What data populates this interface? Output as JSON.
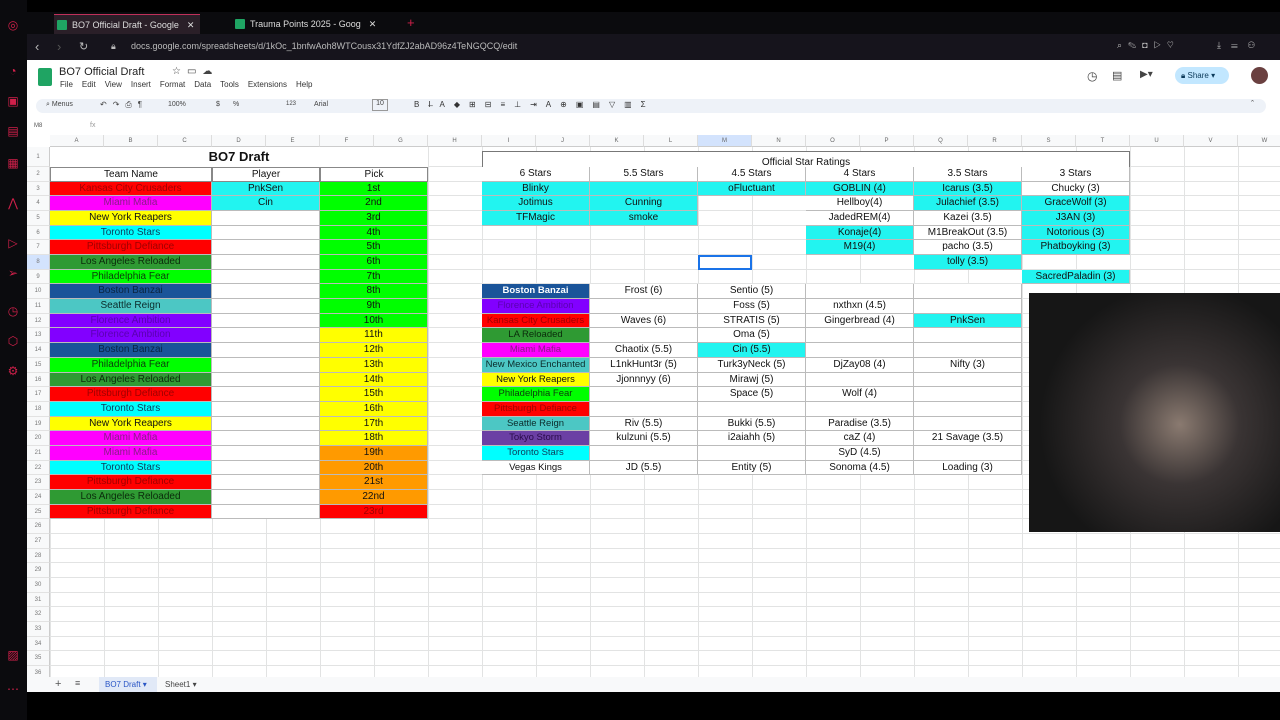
{
  "browser": {
    "tabs": [
      {
        "title": "BO7 Official Draft - Google"
      },
      {
        "title": "Trauma Points 2025 - Goog"
      }
    ],
    "url": "docs.google.com/spreadsheets/d/1kOc_1bnfwAoh8WTCousx31YdfZJ2abAD96z4TeNGQCQ/edit"
  },
  "doc": {
    "title": "BO7 Official Draft",
    "menus": [
      "File",
      "Edit",
      "View",
      "Insert",
      "Format",
      "Data",
      "Tools",
      "Extensions",
      "Help"
    ],
    "share_label": "Share",
    "toolbar": {
      "search": "Menus",
      "zoom": "100%",
      "currency": "$",
      "percent": "%",
      "number_format": "123",
      "font": "Arial",
      "font_size": "10"
    },
    "name_box": "M8",
    "fx": "fx"
  },
  "columns": [
    "A",
    "B",
    "C",
    "D",
    "E",
    "F",
    "G",
    "H",
    "I",
    "J",
    "K",
    "L",
    "M",
    "N",
    "O",
    "P",
    "Q",
    "R",
    "S",
    "T",
    "U",
    "V",
    "W"
  ],
  "colors": {
    "red": "#ff0000",
    "magenta": "#ff00ff",
    "yellow": "#ffff00",
    "cyan": "#00ffff",
    "la": "#2f9a33",
    "green": "#00ff00",
    "boston": "#1a5499",
    "seattle": "#4cc7c4",
    "purple": "#8200ff",
    "tokyo": "#6b3fa4",
    "orange": "#ff9a00",
    "white": "#ffffff",
    "cyanlight": "#22f4f0"
  },
  "draft": {
    "title": "BO7 Draft",
    "headers": {
      "team": "Team Name",
      "player": "Player",
      "pick": "Pick"
    },
    "rows": [
      {
        "team": "Kansas City Crusaders",
        "tc": "red",
        "player": "PnkSen",
        "pick": "1st",
        "pc": "green"
      },
      {
        "team": "Miami Mafia",
        "tc": "magenta",
        "player": "Cin",
        "pick": "2nd",
        "pc": "green"
      },
      {
        "team": "New York Reapers",
        "tc": "yellow",
        "player": "",
        "pick": "3rd",
        "pc": "green"
      },
      {
        "team": "Toronto Stars",
        "tc": "cyan",
        "player": "",
        "pick": "4th",
        "pc": "green"
      },
      {
        "team": "Pittsburgh Defiance",
        "tc": "red",
        "player": "",
        "pick": "5th",
        "pc": "green"
      },
      {
        "team": "Los Angeles Reloaded",
        "tc": "la",
        "player": "",
        "pick": "6th",
        "pc": "green"
      },
      {
        "team": "Philadelphia Fear",
        "tc": "green",
        "player": "",
        "pick": "7th",
        "pc": "green"
      },
      {
        "team": "Boston Banzai",
        "tc": "boston",
        "player": "",
        "pick": "8th",
        "pc": "green"
      },
      {
        "team": "Seattle Reign",
        "tc": "seattle",
        "player": "",
        "pick": "9th",
        "pc": "green"
      },
      {
        "team": "Florence Ambition",
        "tc": "purple",
        "player": "",
        "pick": "10th",
        "pc": "green"
      },
      {
        "team": "Florence Ambition",
        "tc": "purple",
        "player": "",
        "pick": "11th",
        "pc": "yellow"
      },
      {
        "team": "Boston Banzai",
        "tc": "boston",
        "player": "",
        "pick": "12th",
        "pc": "yellow"
      },
      {
        "team": "Philadelphia Fear",
        "tc": "green",
        "player": "",
        "pick": "13th",
        "pc": "yellow"
      },
      {
        "team": "Los Angeles Reloaded",
        "tc": "la",
        "player": "",
        "pick": "14th",
        "pc": "yellow"
      },
      {
        "team": "Pittsburgh Defiance",
        "tc": "red",
        "player": "",
        "pick": "15th",
        "pc": "yellow"
      },
      {
        "team": "Toronto Stars",
        "tc": "cyan",
        "player": "",
        "pick": "16th",
        "pc": "yellow"
      },
      {
        "team": "New York Reapers",
        "tc": "yellow",
        "player": "",
        "pick": "17th",
        "pc": "yellow"
      },
      {
        "team": "Miami Mafia",
        "tc": "magenta",
        "player": "",
        "pick": "18th",
        "pc": "yellow"
      },
      {
        "team": "Miami Mafia",
        "tc": "magenta",
        "player": "",
        "pick": "19th",
        "pc": "orange"
      },
      {
        "team": "Toronto Stars",
        "tc": "cyan",
        "player": "",
        "pick": "20th",
        "pc": "orange"
      },
      {
        "team": "Pittsburgh Defiance",
        "tc": "red",
        "player": "",
        "pick": "21st",
        "pc": "orange"
      },
      {
        "team": "Los Angeles Reloaded",
        "tc": "la",
        "player": "",
        "pick": "22nd",
        "pc": "orange"
      },
      {
        "team": "Pittsburgh Defiance",
        "tc": "red",
        "player": "",
        "pick": "23rd",
        "pc": "red"
      }
    ]
  },
  "ratings": {
    "title": "Official Star Ratings",
    "tiers": [
      {
        "label": "6 Stars",
        "players": [
          {
            "n": "Blinky",
            "hl": true
          },
          {
            "n": "Jotimus",
            "hl": true
          },
          {
            "n": "TFMagic",
            "hl": true
          }
        ]
      },
      {
        "label": "5.5 Stars",
        "players": [
          {
            "n": "",
            "hl": true
          },
          {
            "n": "Cunning",
            "hl": true
          },
          {
            "n": "smoke",
            "hl": true
          }
        ]
      },
      {
        "label": "4.5 Stars",
        "players": [
          {
            "n": "oFluctuant",
            "hl": true
          }
        ]
      },
      {
        "label": "4 Stars",
        "players": [
          {
            "n": "GOBLIN (4)",
            "hl": true
          },
          {
            "n": "Hellboy(4)",
            "hl": false
          },
          {
            "n": "JadedREM(4)",
            "hl": false
          },
          {
            "n": "Konaje(4)",
            "hl": true
          },
          {
            "n": "M19(4)",
            "hl": true
          }
        ]
      },
      {
        "label": "3.5 Stars",
        "players": [
          {
            "n": "Icarus (3.5)",
            "hl": true
          },
          {
            "n": "Julachief (3.5)",
            "hl": true
          },
          {
            "n": "Kazei (3.5)",
            "hl": false
          },
          {
            "n": "M1BreakOut (3.5)",
            "hl": false
          },
          {
            "n": "pacho (3.5)",
            "hl": false
          },
          {
            "n": "tolly (3.5)",
            "hl": true
          }
        ]
      },
      {
        "label": "3 Stars",
        "players": [
          {
            "n": "Chucky (3)",
            "hl": false
          },
          {
            "n": "GraceWolf (3)",
            "hl": true
          },
          {
            "n": "J3AN (3)",
            "hl": true
          },
          {
            "n": "Notorious (3)",
            "hl": true
          },
          {
            "n": "Phatboyking (3)",
            "hl": true
          },
          {
            "n": "",
            "hl": false
          },
          {
            "n": "SacredPaladin (3)",
            "hl": true
          }
        ]
      }
    ]
  },
  "rosters": [
    {
      "team": "Boston Banzai",
      "tc": "boston",
      "tt": "#ffffff",
      "p": [
        "Frost (6)",
        "Sentio (5)",
        "",
        ""
      ]
    },
    {
      "team": "Florence Ambition",
      "tc": "purple",
      "tt": "#5a00b0",
      "p": [
        "",
        "Foss (5)",
        "nxthxn (4.5)",
        ""
      ]
    },
    {
      "team": "Kansas City Crusaders",
      "tc": "red",
      "tt": "#a00000",
      "p": [
        "Waves (6)",
        "STRATIS (5)",
        "Gingerbread (4)",
        "PnkSen"
      ],
      "hl": [
        3
      ]
    },
    {
      "team": "LA Reloaded",
      "tc": "la",
      "tt": "#0b2b0b",
      "p": [
        "",
        "Oma (5)",
        "",
        ""
      ]
    },
    {
      "team": "Miami Mafia",
      "tc": "magenta",
      "tt": "#8a1a8a",
      "p": [
        "Chaotix (5.5)",
        "Cin (5.5)",
        "",
        ""
      ],
      "hl": [
        1
      ]
    },
    {
      "team": "New Mexico Enchanted",
      "tc": "seattle",
      "tt": "#0b2b2b",
      "p": [
        "L1nkHunt3r (5)",
        "Turk3yNeck (5)",
        "DjZay08 (4)",
        "Nifty (3)"
      ]
    },
    {
      "team": "New York Reapers",
      "tc": "yellow",
      "tt": "#111",
      "p": [
        "Jjonnnyy (6)",
        "Mirawj (5)",
        "",
        ""
      ]
    },
    {
      "team": "Philadelphia Fear",
      "tc": "green",
      "tt": "#0b3b0b",
      "p": [
        "",
        "Space (5)",
        "Wolf (4)",
        ""
      ]
    },
    {
      "team": "Pittsburgh Defiance",
      "tc": "red",
      "tt": "#a00000",
      "p": [
        "",
        "",
        "",
        ""
      ]
    },
    {
      "team": "Seattle Reign",
      "tc": "seattle",
      "tt": "#0b2b2b",
      "p": [
        "Riv (5.5)",
        "Bukki (5.5)",
        "Paradise (3.5)",
        ""
      ]
    },
    {
      "team": "Tokyo Storm",
      "tc": "tokyo",
      "tt": "#2a0b4a",
      "p": [
        "kulzuni (5.5)",
        "i2aiahh (5)",
        "caZ (4)",
        "21 Savage (3.5)"
      ]
    },
    {
      "team": "Toronto Stars",
      "tc": "cyan",
      "tt": "#0b3b5b",
      "p": [
        "",
        "",
        "SyD (4.5)",
        ""
      ]
    },
    {
      "team": "Vegas Kings",
      "tc": "white",
      "tt": "#111",
      "p": [
        "JD (5.5)",
        "Entity (5)",
        "Sonoma (4.5)",
        "Loading (3)"
      ]
    }
  ],
  "sheet_tabs": [
    {
      "label": "BO7 Draft",
      "active": true
    },
    {
      "label": "Sheet1",
      "active": false
    }
  ]
}
